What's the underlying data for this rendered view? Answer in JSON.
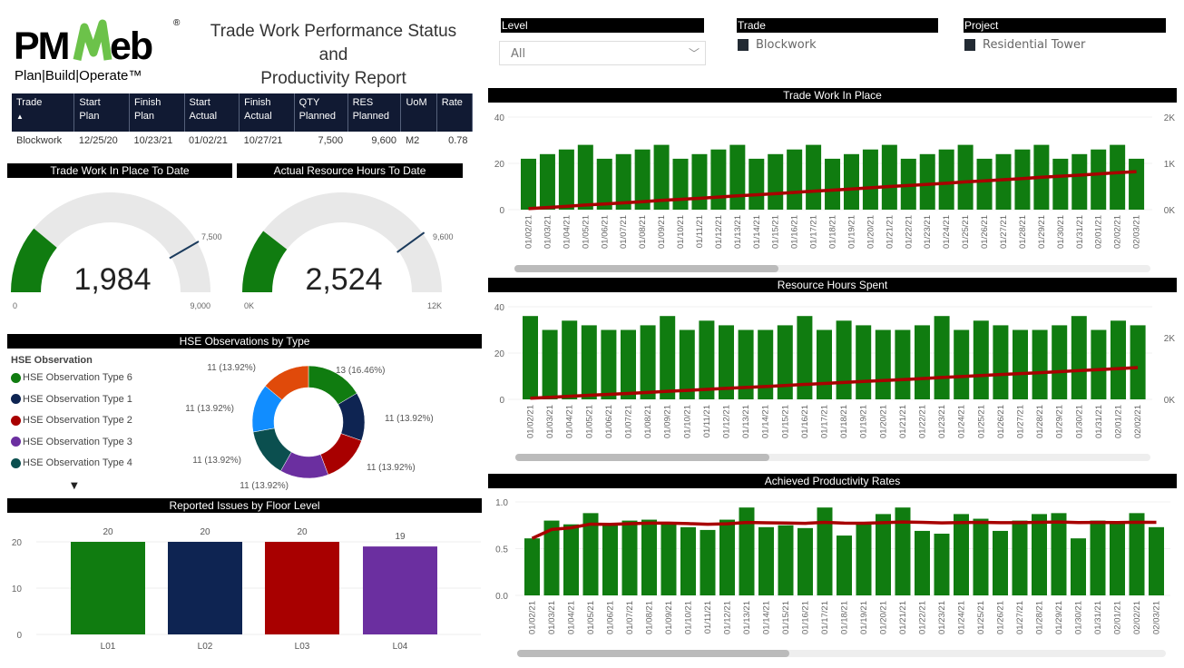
{
  "header": {
    "logo_text": "PMWeb",
    "logo_tagline": "Plan|Build|Operate™",
    "title_line1": "Trade Work Performance Status and",
    "title_line2": "Productivity Report"
  },
  "table": {
    "columns": [
      [
        "Trade",
        ""
      ],
      [
        "Start",
        "Plan"
      ],
      [
        "Finish",
        "Plan"
      ],
      [
        "Start",
        "Actual"
      ],
      [
        "Finish",
        "Actual"
      ],
      [
        "QTY",
        "Planned"
      ],
      [
        "RES",
        "Planned"
      ],
      [
        "UoM",
        ""
      ],
      [
        "Rate",
        ""
      ]
    ],
    "sort_indicator": "▲",
    "rows": [
      [
        "Blockwork",
        "12/25/20",
        "10/23/21",
        "01/02/21",
        "10/27/21",
        "7,500",
        "9,600",
        "M2",
        "0.78"
      ]
    ]
  },
  "filters": {
    "level": {
      "label": "Level",
      "selected": "All"
    },
    "trade": {
      "label": "Trade",
      "value": "Blockwork"
    },
    "project": {
      "label": "Project",
      "value": "Residential Tower"
    }
  },
  "gauges": [
    {
      "title": "Trade Work In Place To Date",
      "value": 1984,
      "value_label": "1,984",
      "min_label": "0",
      "max_label": "9,000",
      "max": 9000,
      "target": 7500,
      "target_label": "7,500"
    },
    {
      "title": "Actual Resource Hours To Date",
      "value": 2524,
      "value_label": "2,524",
      "min_label": "0K",
      "max_label": "12K",
      "max": 12000,
      "target": 9600,
      "target_label": "9,600"
    }
  ],
  "colors": {
    "bar": "#107c10",
    "line": "#a80000",
    "gauge_fill": "#107c10",
    "gauge_bg": "#e8e8e8",
    "target": "#1a3a5c"
  },
  "hse": {
    "title": "HSE Observations by Type",
    "legend_title": "HSE Observation",
    "legend": [
      {
        "label": "HSE Observation Type 6",
        "color": "#107c10"
      },
      {
        "label": "HSE Observation Type 1",
        "color": "#0e2452"
      },
      {
        "label": "HSE Observation Type 2",
        "color": "#a80000"
      },
      {
        "label": "HSE Observation Type 3",
        "color": "#6b2fa0"
      },
      {
        "label": "HSE Observation Type 4",
        "color": "#0b4f4f"
      }
    ],
    "more_icon": "▼"
  },
  "chart_data": [
    {
      "type": "donut",
      "title": "HSE Observations by Type",
      "slices": [
        {
          "value": 13,
          "label": "13 (16.46%)",
          "color": "#107c10"
        },
        {
          "value": 11,
          "label": "11 (13.92%)",
          "color": "#0e2452"
        },
        {
          "value": 11,
          "label": "11 (13.92%)",
          "color": "#a80000"
        },
        {
          "value": 11,
          "label": "11 (13.92%)",
          "color": "#6b2fa0"
        },
        {
          "value": 11,
          "label": "11 (13.92%)",
          "color": "#0b4f4f"
        },
        {
          "value": 11,
          "label": "11 (13.92%)",
          "color": "#118dff"
        },
        {
          "value": 11,
          "label": "11 (13.92%)",
          "color": "#e04a0a"
        }
      ]
    },
    {
      "type": "bar",
      "title": "Reported Issues by Floor Level",
      "categories": [
        "L01",
        "L02",
        "L03",
        "L04"
      ],
      "values": [
        20,
        20,
        20,
        19
      ],
      "colors": [
        "#107c10",
        "#0e2452",
        "#a80000",
        "#6b2fa0"
      ],
      "ylim": [
        0,
        20
      ],
      "yticks": [
        0,
        10,
        20
      ],
      "data_labels": true,
      "grid": true
    },
    {
      "type": "bar+line",
      "title": "Trade Work In Place",
      "categories": [
        "01/02/21",
        "01/03/21",
        "01/04/21",
        "01/05/21",
        "01/06/21",
        "01/07/21",
        "01/08/21",
        "01/09/21",
        "01/10/21",
        "01/11/21",
        "01/12/21",
        "01/13/21",
        "01/14/21",
        "01/15/21",
        "01/16/21",
        "01/17/21",
        "01/18/21",
        "01/19/21",
        "01/20/21",
        "01/21/21",
        "01/22/21",
        "01/23/21",
        "01/24/21",
        "01/25/21",
        "01/26/21",
        "01/27/21",
        "01/28/21",
        "01/29/21",
        "01/30/21",
        "01/31/21",
        "02/01/21",
        "02/02/21",
        "02/03/21"
      ],
      "values": [
        22,
        24,
        26,
        28,
        22,
        24,
        26,
        28,
        22,
        24,
        26,
        28,
        22,
        24,
        26,
        28,
        22,
        24,
        26,
        28,
        22,
        24,
        26,
        28,
        22,
        24,
        26,
        28,
        22,
        24,
        26,
        28,
        22
      ],
      "line": "cumulative",
      "ylim": [
        0,
        40
      ],
      "yticks": [
        "0",
        "20",
        "40"
      ],
      "y2lim": [
        0,
        2000
      ],
      "y2ticks": [
        "0K",
        "1K",
        "2K"
      ],
      "grid": true
    },
    {
      "type": "bar+line",
      "title": "Resource Hours Spent",
      "categories": [
        "01/02/21",
        "01/03/21",
        "01/04/21",
        "01/05/21",
        "01/06/21",
        "01/07/21",
        "01/08/21",
        "01/09/21",
        "01/10/21",
        "01/11/21",
        "01/12/21",
        "01/13/21",
        "01/14/21",
        "01/15/21",
        "01/16/21",
        "01/17/21",
        "01/18/21",
        "01/19/21",
        "01/20/21",
        "01/21/21",
        "01/22/21",
        "01/23/21",
        "01/24/21",
        "01/25/21",
        "01/26/21",
        "01/27/21",
        "01/28/21",
        "01/29/21",
        "01/30/21",
        "01/31/21",
        "02/01/21",
        "02/02/21"
      ],
      "values": [
        36,
        30,
        34,
        32,
        30,
        30,
        32,
        36,
        30,
        34,
        32,
        30,
        30,
        32,
        36,
        30,
        34,
        32,
        30,
        30,
        32,
        36,
        30,
        34,
        32,
        30,
        30,
        32,
        36,
        30,
        34,
        32
      ],
      "line": "cumulative",
      "ylim": [
        0,
        40
      ],
      "yticks": [
        "0",
        "20",
        "40"
      ],
      "y2lim": [
        0,
        3000
      ],
      "y2ticks": [
        "0K",
        "2K"
      ],
      "grid": true
    },
    {
      "type": "bar+line",
      "title": "Achieved Productivity Rates",
      "categories": [
        "01/02/21",
        "01/03/21",
        "01/04/21",
        "01/05/21",
        "01/06/21",
        "01/07/21",
        "01/08/21",
        "01/09/21",
        "01/10/21",
        "01/11/21",
        "01/12/21",
        "01/13/21",
        "01/14/21",
        "01/15/21",
        "01/16/21",
        "01/17/21",
        "01/18/21",
        "01/19/21",
        "01/20/21",
        "01/21/21",
        "01/22/21",
        "01/23/21",
        "01/24/21",
        "01/25/21",
        "01/26/21",
        "01/27/21",
        "01/28/21",
        "01/29/21",
        "01/30/21",
        "01/31/21",
        "02/01/21",
        "02/02/21",
        "02/03/21"
      ],
      "values": [
        0.61,
        0.8,
        0.76,
        0.88,
        0.75,
        0.8,
        0.81,
        0.77,
        0.73,
        0.7,
        0.81,
        0.94,
        0.73,
        0.75,
        0.72,
        0.94,
        0.64,
        0.76,
        0.87,
        0.94,
        0.69,
        0.66,
        0.87,
        0.82,
        0.69,
        0.8,
        0.87,
        0.88,
        0.61,
        0.8,
        0.77,
        0.88,
        0.73
      ],
      "line": "running average",
      "ylim": [
        0,
        1.0
      ],
      "yticks": [
        "0.0",
        "0.5",
        "1.0"
      ],
      "grid": true
    }
  ]
}
